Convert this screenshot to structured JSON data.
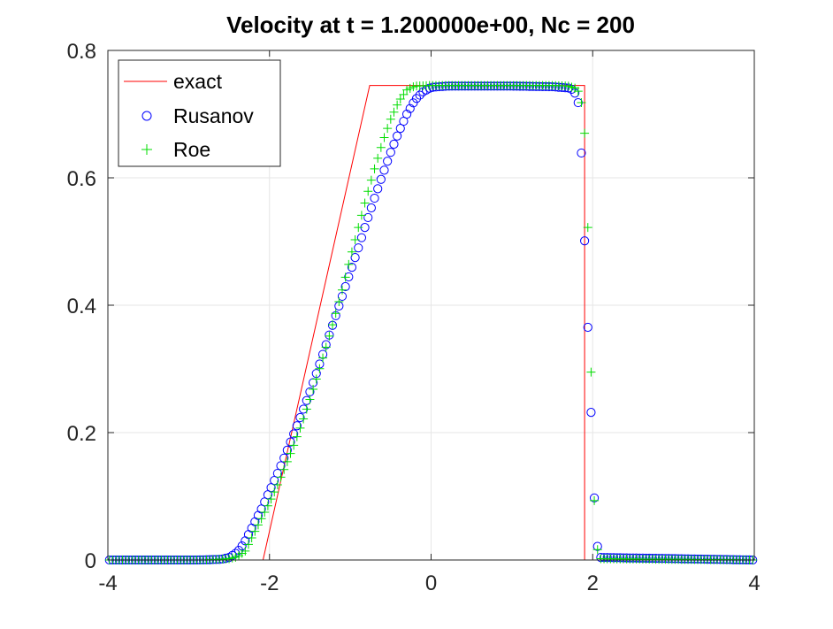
{
  "chart_data": {
    "type": "line",
    "title": "Velocity at t = 1.200000e+00, Nc = 200",
    "xlabel": "",
    "ylabel": "",
    "xlim": [
      -4,
      4
    ],
    "ylim": [
      0,
      0.8
    ],
    "xticks": [
      "-4",
      "-2",
      "0",
      "2",
      "4"
    ],
    "yticks": [
      "0",
      "0.2",
      "0.4",
      "0.6",
      "0.8"
    ],
    "grid": true,
    "legend_position": "top-left",
    "colors": {
      "exact": "#ff0000",
      "rusanov": "#0000ff",
      "roe": "#00dd00"
    },
    "series": [
      {
        "name": "exact",
        "marker": "line",
        "x": [
          -4,
          -2.08,
          -0.76,
          1.9,
          1.9,
          4
        ],
        "y": [
          0,
          0,
          0.745,
          0.745,
          0,
          0
        ]
      },
      {
        "name": "Rusanov",
        "marker": "circle",
        "x": [
          -4,
          -2.9,
          -2.6,
          -2.5,
          -2.4,
          -2.35,
          -2.3,
          -2.2,
          -2.1,
          -2.0,
          -1.9,
          -1.8,
          -1.7,
          -1.6,
          -1.5,
          -1.4,
          -1.3,
          -1.2,
          -1.1,
          -1.0,
          -0.9,
          -0.8,
          -0.7,
          -0.6,
          -0.5,
          -0.4,
          -0.3,
          -0.2,
          -0.1,
          0.0,
          0.2,
          0.5,
          1.0,
          1.5,
          1.7,
          1.76,
          1.8,
          1.84,
          1.92,
          2.0,
          2.04,
          2.1,
          4
        ],
        "y": [
          0,
          0,
          0.001,
          0.004,
          0.012,
          0.02,
          0.03,
          0.055,
          0.08,
          0.108,
          0.136,
          0.166,
          0.198,
          0.23,
          0.264,
          0.3,
          0.338,
          0.376,
          0.414,
          0.452,
          0.49,
          0.53,
          0.568,
          0.605,
          0.64,
          0.672,
          0.7,
          0.722,
          0.735,
          0.742,
          0.744,
          0.744,
          0.744,
          0.743,
          0.741,
          0.738,
          0.728,
          0.708,
          0.432,
          0.165,
          0.03,
          0.004,
          0
        ]
      },
      {
        "name": "Roe",
        "marker": "plus",
        "x": [
          -4,
          -2.8,
          -2.5,
          -2.4,
          -2.3,
          -2.2,
          -2.1,
          -2.0,
          -1.9,
          -1.8,
          -1.7,
          -1.6,
          -1.5,
          -1.4,
          -1.3,
          -1.2,
          -1.1,
          -1.0,
          -0.9,
          -0.8,
          -0.7,
          -0.6,
          -0.5,
          -0.4,
          -0.3,
          -0.2,
          0.0,
          0.5,
          1.0,
          1.5,
          1.7,
          1.8,
          1.85,
          1.9,
          1.96,
          2.0,
          2.05,
          2.1,
          4
        ],
        "y": [
          0,
          0,
          0.002,
          0.005,
          0.014,
          0.04,
          0.065,
          0.09,
          0.118,
          0.148,
          0.18,
          0.214,
          0.252,
          0.292,
          0.334,
          0.378,
          0.424,
          0.474,
          0.522,
          0.57,
          0.614,
          0.656,
          0.692,
          0.72,
          0.738,
          0.744,
          0.745,
          0.745,
          0.745,
          0.745,
          0.744,
          0.74,
          0.73,
          0.67,
          0.448,
          0.142,
          0.02,
          0.002,
          0
        ]
      }
    ]
  }
}
